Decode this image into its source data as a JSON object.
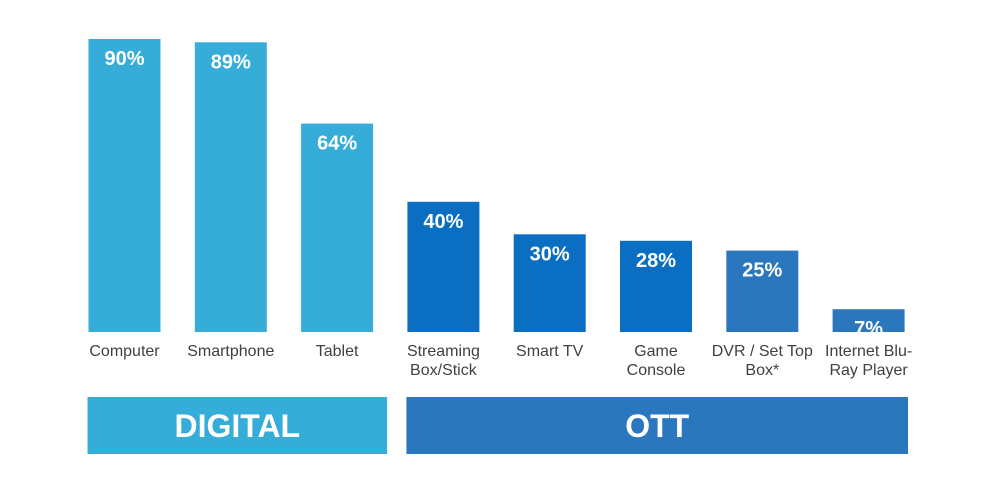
{
  "chart_data": {
    "type": "bar",
    "categories": [
      [
        "Computer"
      ],
      [
        "Smartphone"
      ],
      [
        "Tablet"
      ],
      [
        "Streaming",
        "Box/Stick"
      ],
      [
        "Smart TV"
      ],
      [
        "Game",
        "Console"
      ],
      [
        "DVR / Set Top",
        "Box*"
      ],
      [
        "Internet Blu-",
        "Ray Player"
      ]
    ],
    "values": [
      90,
      89,
      64,
      40,
      30,
      28,
      25,
      7
    ],
    "value_labels": [
      "90%",
      "89%",
      "64%",
      "40%",
      "30%",
      "28%",
      "25%",
      "7%"
    ],
    "bar_colors": [
      "#35add8",
      "#35add8",
      "#35add8",
      "#0a6fc2",
      "#0a6fc2",
      "#0a6fc2",
      "#2a77be",
      "#2a77be"
    ],
    "ylim": [
      0,
      90
    ],
    "title": "",
    "xlabel": "",
    "ylabel": "",
    "grid": false,
    "groups": [
      {
        "label": "DIGITAL",
        "first": 0,
        "last": 2,
        "color": "#35add8"
      },
      {
        "label": "OTT",
        "first": 3,
        "last": 7,
        "color": "#2a77be"
      }
    ]
  }
}
